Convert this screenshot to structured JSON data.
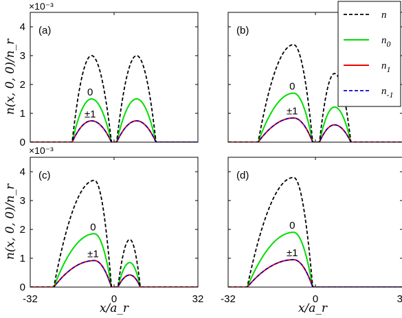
{
  "chart_data": {
    "type": "line",
    "ylabel": "n(x, 0, 0)/n_r",
    "xlabel": "x/a_r",
    "y_exponent_label": "×10⁻³",
    "xlim": [
      -32,
      32
    ],
    "ylim": [
      0,
      4.5
    ],
    "xticks": [
      "-32",
      "0",
      "32"
    ],
    "yticks": [
      "0",
      "1",
      "2",
      "3",
      "4"
    ],
    "legend": {
      "position": "top-right",
      "entries": [
        {
          "label": "n",
          "sub": "",
          "color": "#000000",
          "dash": true
        },
        {
          "label": "n",
          "sub": "0",
          "color": "#00dd00",
          "dash": false
        },
        {
          "label": "n",
          "sub": "1",
          "color": "#ee0000",
          "dash": false
        },
        {
          "label": "n",
          "sub": "-1",
          "color": "#0000cc",
          "dash": true
        }
      ]
    },
    "panels": [
      {
        "label": "(a)",
        "annotation_zero": "0",
        "annotation_pm": "±1",
        "lobes": [
          {
            "left": -16,
            "right": -1,
            "peak_x": -8.6,
            "n_peak": 3.0,
            "n0_peak": 1.5,
            "n1_peak": 0.74
          },
          {
            "left": 1,
            "right": 16,
            "peak_x": 8.6,
            "n_peak": 3.0,
            "n0_peak": 1.5,
            "n1_peak": 0.74
          }
        ]
      },
      {
        "label": "(b)",
        "annotation_zero": "0",
        "annotation_pm": "±1",
        "lobes": [
          {
            "left": -21,
            "right": -1,
            "peak_x": -8,
            "n_peak": 3.38,
            "n0_peak": 1.7,
            "n1_peak": 0.84
          },
          {
            "left": 1.5,
            "right": 13,
            "peak_x": 7,
            "n_peak": 2.38,
            "n0_peak": 1.22,
            "n1_peak": 0.6
          }
        ]
      },
      {
        "label": "(c)",
        "annotation_zero": "0",
        "annotation_pm": "±1",
        "lobes": [
          {
            "left": -23,
            "right": -1,
            "peak_x": -7.5,
            "n_peak": 3.7,
            "n0_peak": 1.85,
            "n1_peak": 0.92
          },
          {
            "left": 1.5,
            "right": 10,
            "peak_x": 6,
            "n_peak": 1.65,
            "n0_peak": 0.85,
            "n1_peak": 0.42
          }
        ]
      },
      {
        "label": "(d)",
        "annotation_zero": "0",
        "annotation_pm": "±1",
        "lobes": [
          {
            "left": -25,
            "right": -1,
            "peak_x": -8,
            "n_peak": 3.8,
            "n0_peak": 1.9,
            "n1_peak": 0.95
          }
        ]
      }
    ]
  }
}
